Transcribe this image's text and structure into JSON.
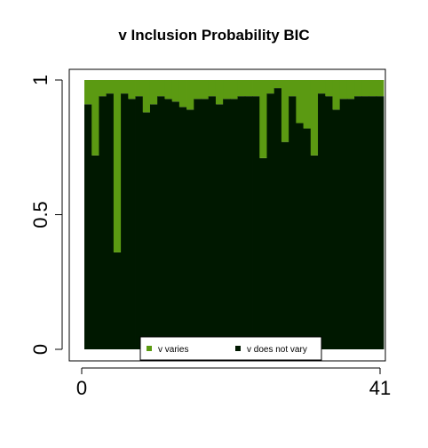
{
  "chart_data": {
    "type": "bar",
    "title": "v Inclusion Probability BIC",
    "xlabel": "",
    "ylabel": "",
    "x_ticks": [
      "0",
      "41"
    ],
    "y_ticks": [
      "0",
      "0.5",
      "1"
    ],
    "ylim": [
      0,
      1
    ],
    "xlim": [
      0,
      41
    ],
    "legend_position": "bottom-center",
    "colors": {
      "varies": "#5b9a12",
      "does_not_vary": "#001800",
      "frame": "#000000"
    },
    "series": [
      {
        "name": "v varies",
        "values": [
          0.09,
          0.28,
          0.06,
          0.05,
          0.64,
          0.05,
          0.07,
          0.06,
          0.12,
          0.09,
          0.06,
          0.07,
          0.08,
          0.1,
          0.11,
          0.07,
          0.07,
          0.06,
          0.09,
          0.07,
          0.07,
          0.06,
          0.06,
          0.06,
          0.29,
          0.05,
          0.03,
          0.23,
          0.06,
          0.16,
          0.18,
          0.28,
          0.05,
          0.06,
          0.11,
          0.07,
          0.07,
          0.06,
          0.06,
          0.06,
          0.06
        ]
      },
      {
        "name": "v does not vary",
        "values": [
          0.91,
          0.72,
          0.94,
          0.95,
          0.36,
          0.95,
          0.93,
          0.94,
          0.88,
          0.91,
          0.94,
          0.93,
          0.92,
          0.9,
          0.89,
          0.93,
          0.93,
          0.94,
          0.91,
          0.93,
          0.93,
          0.94,
          0.94,
          0.94,
          0.71,
          0.95,
          0.97,
          0.77,
          0.94,
          0.84,
          0.82,
          0.72,
          0.95,
          0.94,
          0.89,
          0.93,
          0.93,
          0.94,
          0.94,
          0.94,
          0.94
        ]
      }
    ]
  }
}
